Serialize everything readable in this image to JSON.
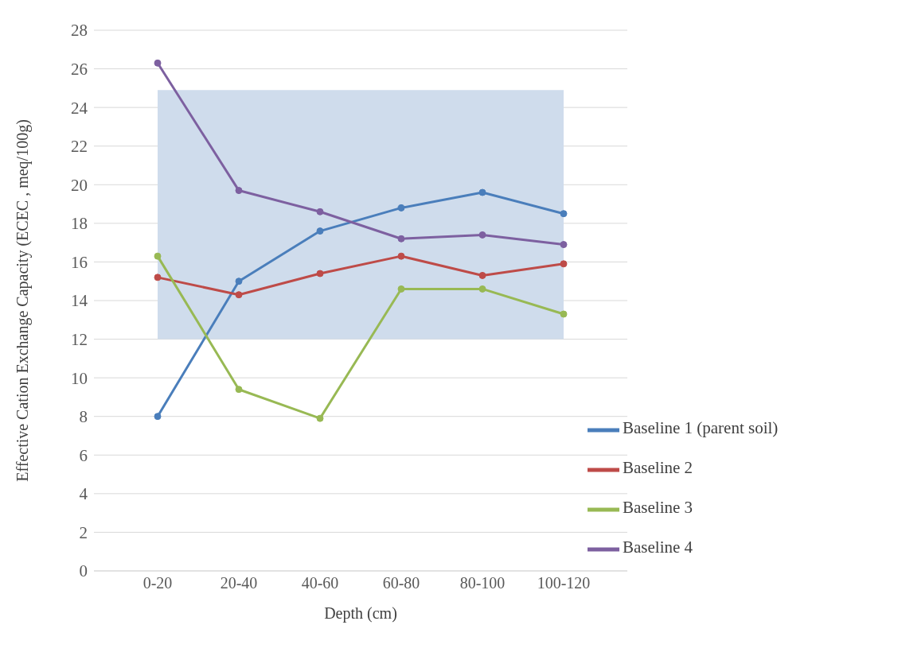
{
  "chart_data": {
    "type": "line",
    "xlabel": "Depth (cm)",
    "ylabel": "Effective Cation Exchange Capacity (ECEC , meq/100g)",
    "categories": [
      "0-20",
      "20-40",
      "40-60",
      "60-80",
      "80-100",
      "100-120"
    ],
    "series": [
      {
        "name": "Baseline 1 (parent soil)",
        "color": "#4a7ebb",
        "values": [
          8.0,
          15.0,
          17.6,
          18.8,
          19.6,
          18.5
        ]
      },
      {
        "name": "Baseline 2",
        "color": "#be4b48",
        "values": [
          15.2,
          14.3,
          15.4,
          16.3,
          15.3,
          15.9
        ]
      },
      {
        "name": "Baseline 3",
        "color": "#98b954",
        "values": [
          16.3,
          9.4,
          7.9,
          14.6,
          14.6,
          13.3
        ]
      },
      {
        "name": "Baseline 4",
        "color": "#7d60a0",
        "values": [
          26.3,
          19.7,
          18.6,
          17.2,
          17.4,
          16.9
        ]
      }
    ],
    "ylim": [
      0,
      28
    ],
    "yticks": [
      0,
      2,
      4,
      6,
      8,
      10,
      12,
      14,
      16,
      18,
      20,
      22,
      24,
      26,
      28
    ],
    "bands": [
      {
        "axis": "y",
        "from": 12,
        "to": 24.9,
        "color": "#cfdcec"
      }
    ],
    "grid": "y",
    "legend": "bottom right",
    "marker": "circle",
    "line_style": "solid"
  }
}
